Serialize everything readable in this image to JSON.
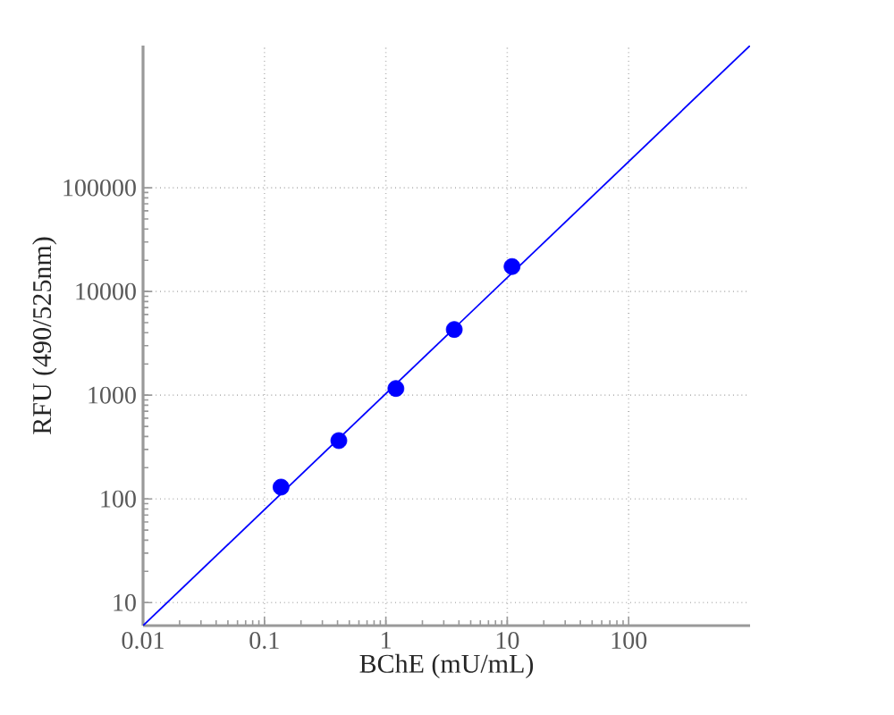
{
  "chart_data": {
    "type": "scatter",
    "xlabel": "BChE (mU/mL)",
    "ylabel": "RFU (490/525nm)",
    "log": "xy",
    "grid": true,
    "legend": false,
    "marker": "circle",
    "xlim": [
      0.01,
      1000
    ],
    "ylim": [
      6,
      2350000
    ],
    "xticks": [
      0.01,
      0.1,
      1,
      10,
      100
    ],
    "yticks": [
      10,
      100,
      1000,
      10000,
      100000
    ],
    "series": [
      {
        "type": "line",
        "color": "#0000ff",
        "marker": "none",
        "line_style": "solid",
        "x": [
          0.01,
          1000
        ],
        "values": [
          6,
          2350000
        ]
      },
      {
        "color": "#0000ff",
        "x": [
          0.137,
          0.41,
          1.21,
          3.66,
          10.95
        ],
        "values": [
          130,
          365,
          1160,
          4300,
          17400
        ]
      }
    ]
  }
}
